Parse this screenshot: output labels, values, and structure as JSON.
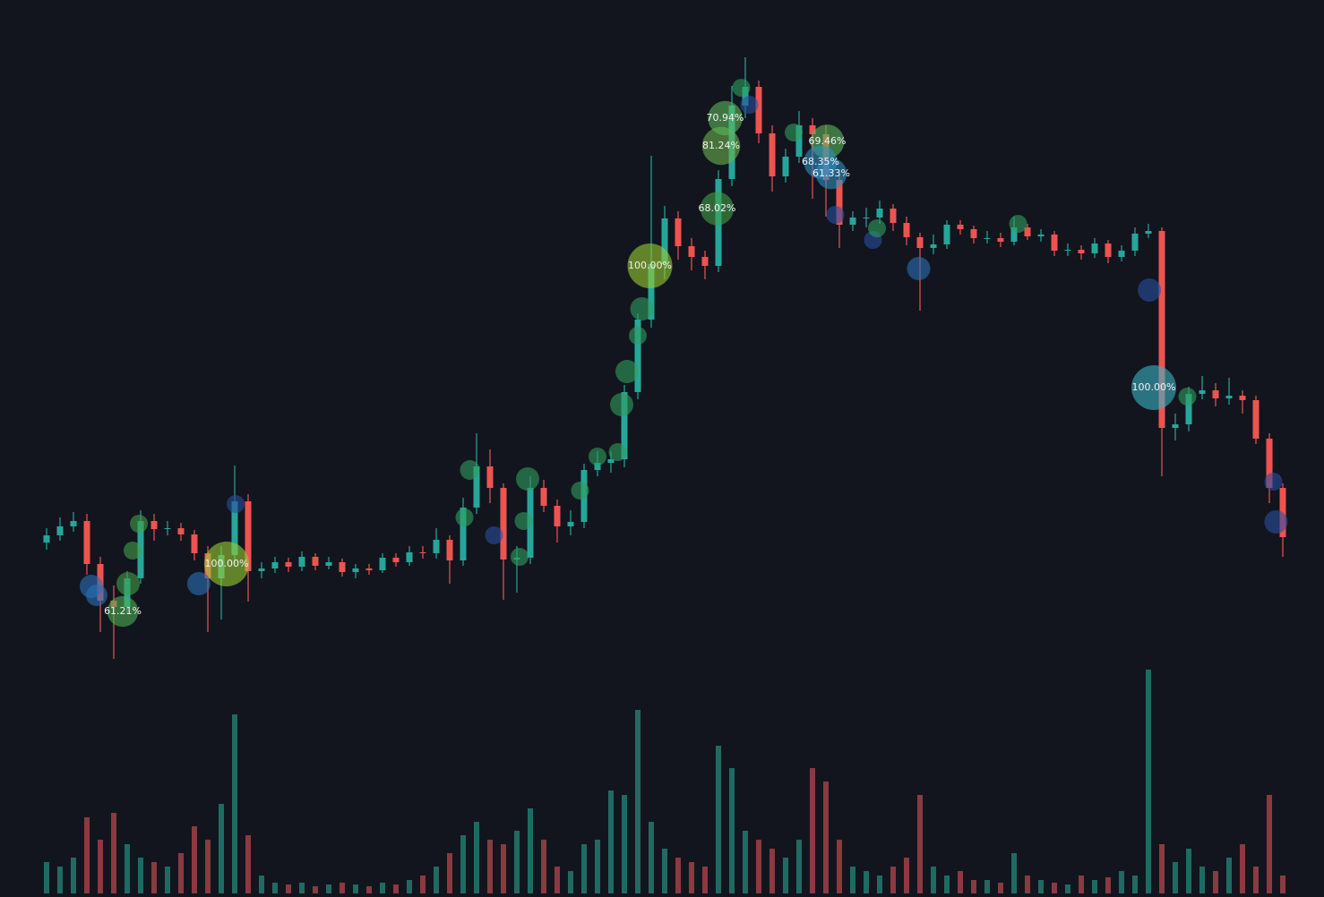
{
  "chart_data": {
    "type": "candlestick",
    "ohlc": [
      [
        396,
        412,
        388,
        404
      ],
      [
        404,
        424,
        398,
        414
      ],
      [
        414,
        430,
        408,
        420
      ],
      [
        420,
        428,
        360,
        372
      ],
      [
        372,
        380,
        296,
        331
      ],
      [
        331,
        348,
        266,
        324
      ],
      [
        324,
        364,
        316,
        356
      ],
      [
        356,
        432,
        350,
        420
      ],
      [
        420,
        428,
        398,
        411
      ],
      [
        411,
        420,
        404,
        412
      ],
      [
        412,
        418,
        398,
        405
      ],
      [
        405,
        410,
        376,
        384
      ],
      [
        384,
        392,
        296,
        356
      ],
      [
        356,
        392,
        310,
        382
      ],
      [
        382,
        482,
        372,
        442
      ],
      [
        442,
        450,
        330,
        364
      ],
      [
        364,
        374,
        356,
        367
      ],
      [
        367,
        380,
        362,
        374
      ],
      [
        374,
        379,
        363,
        369
      ],
      [
        369,
        386,
        364,
        380
      ],
      [
        380,
        384,
        365,
        370
      ],
      [
        370,
        380,
        366,
        374
      ],
      [
        374,
        378,
        358,
        363
      ],
      [
        363,
        372,
        356,
        367
      ],
      [
        367,
        372,
        360,
        365
      ],
      [
        365,
        384,
        362,
        379
      ],
      [
        379,
        384,
        369,
        374
      ],
      [
        374,
        392,
        370,
        385
      ],
      [
        385,
        392,
        378,
        384
      ],
      [
        384,
        412,
        378,
        399
      ],
      [
        399,
        404,
        350,
        376
      ],
      [
        376,
        446,
        370,
        435
      ],
      [
        435,
        518,
        428,
        481
      ],
      [
        481,
        500,
        440,
        457
      ],
      [
        457,
        462,
        332,
        377
      ],
      [
        377,
        392,
        340,
        379
      ],
      [
        379,
        470,
        372,
        457
      ],
      [
        457,
        466,
        430,
        437
      ],
      [
        437,
        444,
        396,
        414
      ],
      [
        414,
        432,
        404,
        419
      ],
      [
        419,
        484,
        412,
        477
      ],
      [
        477,
        498,
        470,
        485
      ],
      [
        485,
        498,
        474,
        489
      ],
      [
        489,
        572,
        480,
        564
      ],
      [
        564,
        652,
        556,
        645
      ],
      [
        645,
        828,
        636,
        707
      ],
      [
        707,
        772,
        690,
        758
      ],
      [
        758,
        766,
        712,
        727
      ],
      [
        727,
        736,
        700,
        715
      ],
      [
        715,
        722,
        690,
        705
      ],
      [
        705,
        812,
        698,
        802
      ],
      [
        802,
        906,
        794,
        884
      ],
      [
        884,
        938,
        870,
        905
      ],
      [
        905,
        912,
        842,
        853
      ],
      [
        853,
        862,
        788,
        805
      ],
      [
        805,
        836,
        798,
        827
      ],
      [
        827,
        878,
        820,
        862
      ],
      [
        862,
        870,
        780,
        852
      ],
      [
        852,
        862,
        760,
        801
      ],
      [
        801,
        808,
        725,
        751
      ],
      [
        751,
        766,
        744,
        759
      ],
      [
        759,
        770,
        748,
        759
      ],
      [
        759,
        778,
        752,
        769
      ],
      [
        769,
        774,
        744,
        753
      ],
      [
        753,
        760,
        728,
        737
      ],
      [
        737,
        742,
        655,
        725
      ],
      [
        725,
        740,
        718,
        729
      ],
      [
        729,
        756,
        724,
        751
      ],
      [
        751,
        756,
        740,
        746
      ],
      [
        746,
        750,
        730,
        736
      ],
      [
        736,
        744,
        730,
        736
      ],
      [
        736,
        742,
        726,
        732
      ],
      [
        732,
        760,
        728,
        748
      ],
      [
        748,
        752,
        734,
        738
      ],
      [
        738,
        746,
        732,
        740
      ],
      [
        740,
        744,
        716,
        722
      ],
      [
        722,
        730,
        716,
        723
      ],
      [
        723,
        728,
        712,
        719
      ],
      [
        719,
        736,
        714,
        730
      ],
      [
        730,
        734,
        708,
        715
      ],
      [
        715,
        728,
        710,
        722
      ],
      [
        722,
        748,
        716,
        741
      ],
      [
        741,
        752,
        736,
        744
      ],
      [
        744,
        748,
        470,
        524
      ],
      [
        524,
        540,
        510,
        528
      ],
      [
        528,
        570,
        520,
        562
      ],
      [
        562,
        582,
        556,
        566
      ],
      [
        566,
        574,
        548,
        557
      ],
      [
        557,
        580,
        550,
        560
      ],
      [
        560,
        566,
        540,
        555
      ],
      [
        555,
        560,
        506,
        512
      ],
      [
        512,
        518,
        440,
        457
      ],
      [
        457,
        462,
        380,
        402
      ]
    ],
    "volume": [
      35,
      30,
      40,
      85,
      60,
      90,
      55,
      40,
      35,
      30,
      45,
      75,
      60,
      100,
      200,
      65,
      20,
      12,
      10,
      12,
      8,
      10,
      12,
      10,
      8,
      12,
      10,
      15,
      20,
      30,
      45,
      65,
      80,
      60,
      55,
      70,
      95,
      60,
      30,
      25,
      55,
      60,
      115,
      110,
      205,
      80,
      50,
      40,
      35,
      30,
      165,
      140,
      70,
      60,
      50,
      40,
      60,
      140,
      125,
      60,
      30,
      25,
      20,
      30,
      40,
      110,
      30,
      20,
      25,
      15,
      15,
      12,
      45,
      20,
      15,
      12,
      10,
      20,
      15,
      18,
      25,
      20,
      250,
      55,
      35,
      50,
      30,
      25,
      40,
      55,
      30,
      110,
      20
    ],
    "ylim": [
      250,
      950
    ],
    "vlim": [
      0,
      260
    ],
    "up_color": "#26a69a",
    "down_color": "#ef5350",
    "up_volume_color": "#1f6b63",
    "down_volume_color": "#8a3a40",
    "bubbles": {
      "x": [
        5.67,
        13.4,
        44.9,
        49.9,
        50.2,
        50.5,
        58.1,
        57.6,
        58.4,
        82.4,
        3.33,
        3.73,
        6.07,
        11.33,
        6.87,
        6.4,
        14.07,
        31.5,
        31.1,
        33.3,
        35.8,
        35.5,
        35.2,
        39.7,
        41,
        42.5,
        42.8,
        43.2,
        44,
        44.3,
        51.7,
        52.3,
        55.6,
        58.7,
        61.5,
        61.8,
        64.9,
        72.3,
        82.07,
        84.9,
        91.3,
        91.5
      ],
      "y": [
        319,
        372,
        705,
        769,
        839,
        870,
        844,
        821,
        808,
        569,
        347,
        337,
        350,
        350,
        417,
        387,
        439,
        477,
        424,
        404,
        467,
        420,
        380,
        454,
        492,
        497,
        550,
        587,
        627,
        657,
        904,
        885,
        854,
        762,
        734,
        747,
        702,
        752,
        678,
        559,
        464,
        419
      ],
      "values": [
        61.21,
        100,
        100,
        68.02,
        81.24,
        70.94,
        69.46,
        68.35,
        61.33,
        100,
        40,
        35,
        40,
        40,
        25,
        25,
        25,
        30,
        25,
        25,
        40,
        25,
        25,
        25,
        25,
        25,
        40,
        40,
        25,
        40,
        25,
        25,
        25,
        25,
        25,
        25,
        40,
        25,
        40,
        25,
        25,
        40
      ],
      "value_labels": [
        "61.21%",
        "100.00%",
        "100.00%",
        "68.02%",
        "81.24%",
        "70.94%",
        "69.46%",
        "68.35%",
        "61.33%",
        "100.00%",
        null,
        null,
        null,
        null,
        null,
        null,
        null,
        null,
        null,
        null,
        null,
        null,
        null,
        null,
        null,
        null,
        null,
        null,
        null,
        null,
        null,
        null,
        null,
        null,
        null,
        null,
        null,
        null,
        null,
        null,
        null,
        null
      ],
      "colors": [
        "#4caf50",
        "#9acd32",
        "#9acd32",
        "#43a047",
        "#6ab04c",
        "#5cb85c",
        "#5cb85c",
        "#2f8fbf",
        "#2f8fbf",
        "#3bb3c3",
        "#2a6fb8",
        "#2a6fb8",
        "#43a047",
        "#2a6fb8",
        "#43a047",
        "#43a047",
        "#2a4fa0",
        "#2e9e5e",
        "#2e9e5e",
        "#2a4fa0",
        "#2e9e5e",
        "#2e9e5e",
        "#2e9e5e",
        "#2e9e5e",
        "#2e9e5e",
        "#2e9e5e",
        "#2e9e5e",
        "#2e9e5e",
        "#2e9e5e",
        "#2e9e5e",
        "#2e9e5e",
        "#2a4fa0",
        "#2e9e5e",
        "#2a4fa0",
        "#2a4fa0",
        "#2e9e5e",
        "#2a6fb8",
        "#2e9e5e",
        "#2a4fa0",
        "#2e9e5e",
        "#2a4fa0",
        "#2a4fa0"
      ]
    }
  }
}
